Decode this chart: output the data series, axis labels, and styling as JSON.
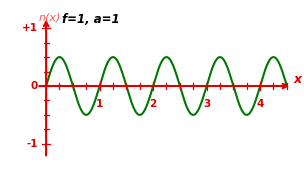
{
  "title": "f=1, a=1",
  "ylabel": "n(x)",
  "xlabel": "x",
  "frequency": 1,
  "amplitude": 1,
  "x_end": 4.5,
  "xlim": [
    -0.18,
    4.65
  ],
  "ylim": [
    -1.25,
    1.25
  ],
  "ytick_positions": [
    -1.0,
    1.0
  ],
  "ytick_labels": [
    "-1",
    "+1"
  ],
  "xticks": [
    1,
    2,
    3,
    4
  ],
  "line_color": "#007700",
  "axis_color": "#dd0000",
  "title_color": "#000000",
  "ylabel_color": "#ff5555",
  "background_color": "#ffffff",
  "line_width": 1.5,
  "minor_tick_step": 0.25,
  "major_tick_step": 1.0
}
